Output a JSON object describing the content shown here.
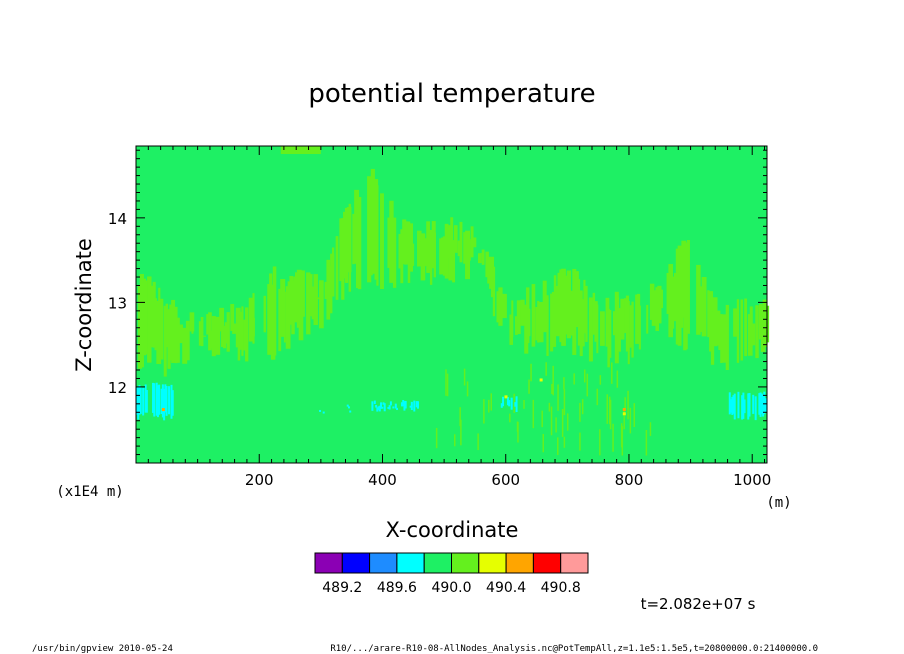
{
  "chart_data": {
    "type": "heatmap",
    "title": "potential temperature",
    "xlabel": "X-coordinate",
    "ylabel": "Z-coordinate",
    "x_unit": "(m)",
    "y_unit": "(x1E4 m)",
    "xlim": [
      0,
      1024
    ],
    "ylim": [
      11.1,
      14.85
    ],
    "x_ticks": [
      "200",
      "400",
      "600",
      "800",
      "1000"
    ],
    "y_ticks": [
      "12",
      "13",
      "14"
    ],
    "colorbar": {
      "colors": [
        "#8b00b4",
        "#0000ff",
        "#1e8cff",
        "#00ffff",
        "#1ef064",
        "#64f01e",
        "#e6ff00",
        "#ffa500",
        "#ff0000",
        "#ff9a9a"
      ],
      "tick_labels": [
        "489.2",
        "489.6",
        "490.0",
        "490.4",
        "490.8"
      ]
    },
    "dominant_value_color": "#1ef064",
    "time_label": "t=2.082e+07 s"
  },
  "footer": {
    "left": "/usr/bin/gpview   2010-05-24",
    "right": "R10/.../arare-R10-08-AllNodes_Analysis.nc@PotTempAll,z=1.1e5:1.5e5,t=20800000.0:21400000.0"
  }
}
